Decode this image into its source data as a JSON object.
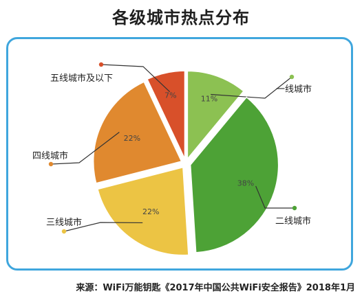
{
  "page": {
    "title": "各级城市热点分布",
    "source": "来源：WiFi万能钥匙《2017年中国公共WiFi安全报告》2018年1月"
  },
  "chart_data": {
    "type": "pie",
    "title": "各级城市热点分布",
    "start_angle_deg": 0,
    "direction": "clockwise",
    "exploded": true,
    "slices": [
      {
        "label": "一线城市",
        "value": 11,
        "display": "11%",
        "color": "#8cc152",
        "label_side": "right"
      },
      {
        "label": "二线城市",
        "value": 38,
        "display": "38%",
        "color": "#4da236",
        "label_side": "right"
      },
      {
        "label": "三线城市",
        "value": 22,
        "display": "22%",
        "color": "#ecc444",
        "label_side": "left"
      },
      {
        "label": "四线城市",
        "value": 22,
        "display": "22%",
        "color": "#e0892f",
        "label_side": "left"
      },
      {
        "label": "五线城市及以下",
        "value": 7,
        "display": "7%",
        "color": "#d8502a",
        "label_side": "left"
      }
    ]
  }
}
